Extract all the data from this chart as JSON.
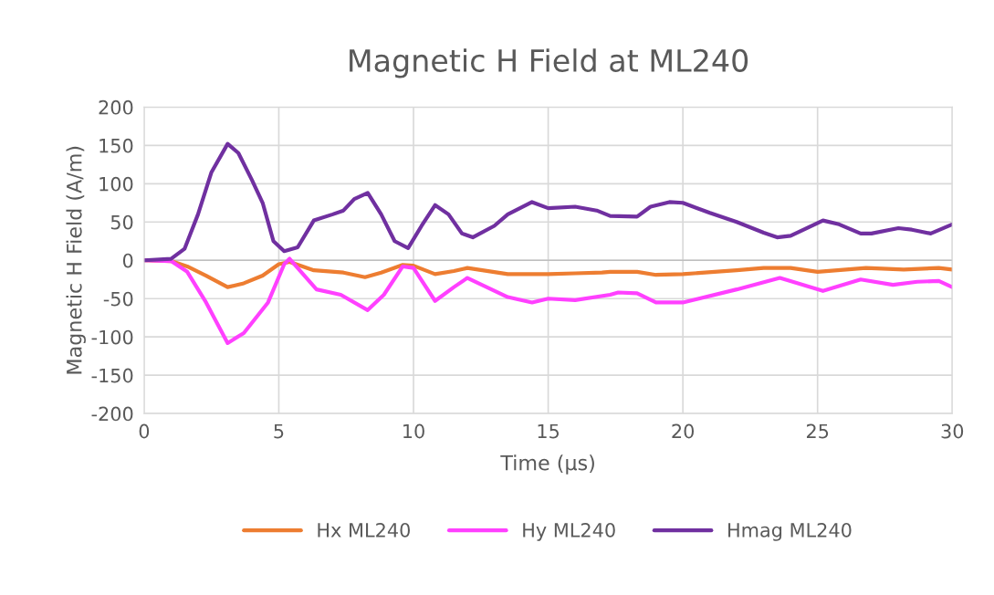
{
  "chart_data": {
    "type": "line",
    "title": "Magnetic H Field at ML240",
    "xlabel": "Time (µs)",
    "ylabel": "Magnetic H Field (A/m)",
    "xlim": [
      0,
      30
    ],
    "xticks": [
      0,
      5,
      10,
      15,
      20,
      25,
      30
    ],
    "ylim": [
      -200,
      200
    ],
    "yticks": [
      -200,
      -150,
      -100,
      -50,
      0,
      50,
      100,
      150,
      200
    ],
    "grid": true,
    "legend": "bottom",
    "marker": "none",
    "line_style": "solid",
    "series": [
      {
        "name": "Hx ML240",
        "color": "#ed7d31",
        "x": [
          0,
          1,
          1.6,
          2.3,
          3.1,
          3.7,
          4.4,
          5,
          5.4,
          6.3,
          7.4,
          8.2,
          8.8,
          9.6,
          10,
          10.8,
          11.5,
          12,
          13.5,
          15,
          16,
          17,
          17.3,
          18.3,
          19,
          20,
          22,
          23,
          24,
          25,
          26.8,
          28.2,
          29.5,
          30
        ],
        "values": [
          0,
          -1,
          -8,
          -20,
          -35,
          -30,
          -20,
          -5,
          -2,
          -13,
          -16,
          -22,
          -16,
          -6,
          -7,
          -18,
          -14,
          -10,
          -18,
          -18,
          -17,
          -16,
          -15,
          -15,
          -19,
          -18,
          -13,
          -10,
          -10,
          -15,
          -10,
          -12,
          -10,
          -12
        ]
      },
      {
        "name": "Hy ML240",
        "color": "#ff40ff",
        "x": [
          0,
          1,
          1.6,
          2.3,
          3.1,
          3.7,
          4.6,
          5.2,
          5.4,
          6.4,
          7.3,
          8.3,
          8.9,
          9.6,
          10,
          10.8,
          11.5,
          12,
          13.5,
          14.4,
          15,
          16,
          17.3,
          17.6,
          18.3,
          19,
          20,
          22,
          23.6,
          25.2,
          26.6,
          27.8,
          28.7,
          29.5,
          30
        ],
        "values": [
          0,
          -1,
          -15,
          -55,
          -108,
          -95,
          -55,
          -5,
          2,
          -38,
          -45,
          -65,
          -45,
          -8,
          -10,
          -53,
          -35,
          -23,
          -48,
          -55,
          -50,
          -52,
          -45,
          -42,
          -43,
          -55,
          -55,
          -38,
          -23,
          -40,
          -25,
          -32,
          -28,
          -27,
          -35
        ]
      },
      {
        "name": "Hmag ML240",
        "color": "#7030a0",
        "x": [
          0,
          1,
          1.5,
          2,
          2.5,
          3.1,
          3.5,
          4,
          4.4,
          4.8,
          5.2,
          5.7,
          6.3,
          7,
          7.4,
          7.8,
          8.3,
          8.8,
          9.3,
          9.8,
          10.3,
          10.8,
          11.3,
          11.8,
          12.2,
          13,
          13.5,
          14.4,
          15,
          16,
          16.8,
          17.3,
          18.3,
          18.8,
          19.5,
          20,
          21,
          22,
          23,
          23.5,
          24,
          25.2,
          25.8,
          26.6,
          27,
          28,
          28.5,
          29.2,
          30
        ],
        "values": [
          0,
          2,
          15,
          60,
          115,
          152,
          140,
          105,
          75,
          25,
          12,
          17,
          52,
          60,
          65,
          80,
          88,
          60,
          25,
          16,
          45,
          72,
          60,
          35,
          30,
          45,
          60,
          76,
          68,
          70,
          65,
          58,
          57,
          70,
          76,
          75,
          62,
          50,
          36,
          30,
          32,
          52,
          47,
          35,
          35,
          42,
          40,
          35,
          47
        ]
      }
    ]
  }
}
